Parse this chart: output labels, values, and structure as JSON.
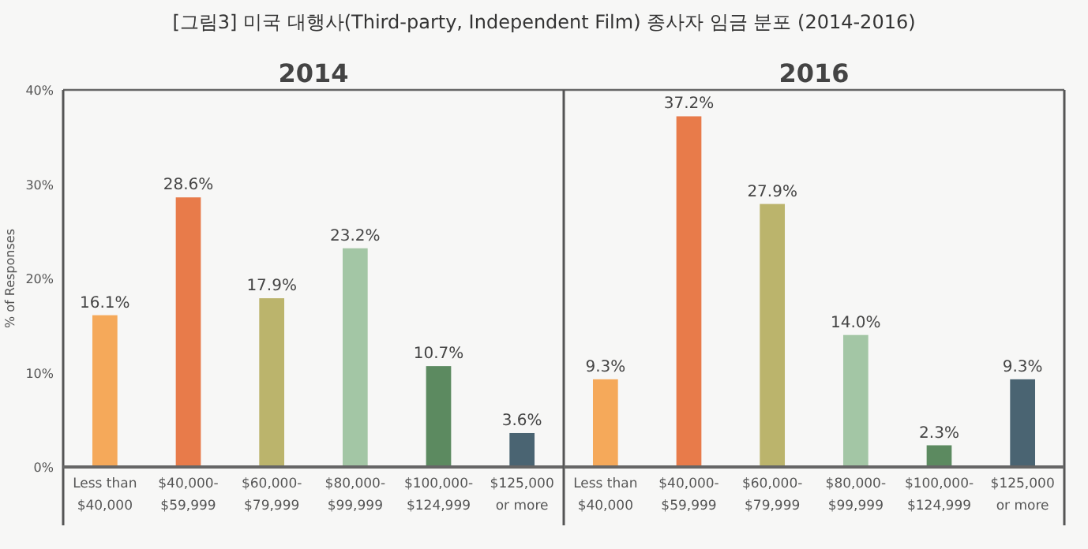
{
  "chart_data": [
    {
      "type": "bar",
      "title": "[그림3] 미국 대행사(Third-party, Independent Film) 종사자 임금 분포 (2014-2016)",
      "subtitle": "2014",
      "ylabel": "% of Responses",
      "categories": [
        "Less than $40,000",
        "$40,000-$59,999",
        "$60,000-$79,999",
        "$80,000-$99,999",
        "$100,000-$124,999",
        "$125,000 or more"
      ],
      "values": [
        16.1,
        28.6,
        17.9,
        23.2,
        10.7,
        3.6
      ],
      "colors": [
        "#f5a95a",
        "#e87b4a",
        "#bbb46c",
        "#a3c6a5",
        "#5c8a60",
        "#4a6472"
      ],
      "value_labels": [
        "16.1%",
        "28.6%",
        "17.9%",
        "23.2%",
        "10.7%",
        "3.6%"
      ],
      "ylim": [
        0,
        40
      ],
      "yticks": [
        {
          "value": 0,
          "label": "0%"
        },
        {
          "value": 10,
          "label": "10%"
        },
        {
          "value": 20,
          "label": "20%"
        },
        {
          "value": 30,
          "label": "30%"
        },
        {
          "value": 40,
          "label": "40%"
        }
      ]
    },
    {
      "type": "bar",
      "subtitle": "2016",
      "categories": [
        "Less than $40,000",
        "$40,000-$59,999",
        "$60,000-$79,999",
        "$80,000-$99,999",
        "$100,000-$124,999",
        "$125,000 or more"
      ],
      "values": [
        9.3,
        37.2,
        27.9,
        14.0,
        2.3,
        9.3
      ],
      "colors": [
        "#f5a95a",
        "#e87b4a",
        "#bbb46c",
        "#a3c6a5",
        "#5c8a60",
        "#4a6472"
      ],
      "value_labels": [
        "9.3%",
        "37.2%",
        "27.9%",
        "14.0%",
        "2.3%",
        "9.3%"
      ],
      "ylim": [
        0,
        40
      ],
      "tick_labels": "x"
    }
  ]
}
